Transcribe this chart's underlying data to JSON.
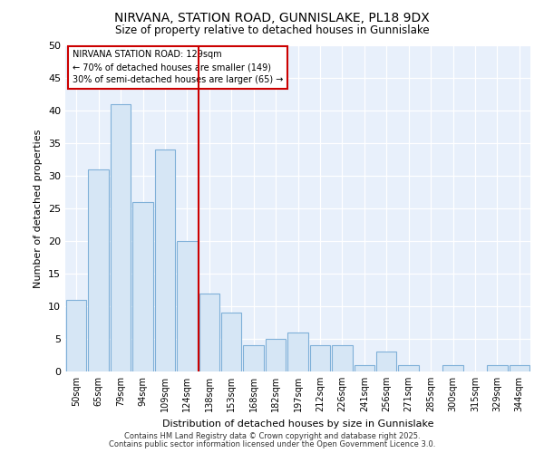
{
  "title1": "NIRVANA, STATION ROAD, GUNNISLAKE, PL18 9DX",
  "title2": "Size of property relative to detached houses in Gunnislake",
  "xlabel": "Distribution of detached houses by size in Gunnislake",
  "ylabel": "Number of detached properties",
  "categories": [
    "50sqm",
    "65sqm",
    "79sqm",
    "94sqm",
    "109sqm",
    "124sqm",
    "138sqm",
    "153sqm",
    "168sqm",
    "182sqm",
    "197sqm",
    "212sqm",
    "226sqm",
    "241sqm",
    "256sqm",
    "271sqm",
    "285sqm",
    "300sqm",
    "315sqm",
    "329sqm",
    "344sqm"
  ],
  "values": [
    11,
    31,
    41,
    26,
    34,
    20,
    12,
    9,
    4,
    5,
    6,
    4,
    4,
    1,
    3,
    1,
    0,
    1,
    0,
    1,
    1
  ],
  "bar_color": "#d6e6f5",
  "bar_edgecolor": "#7fb0d8",
  "vline_x": 5.5,
  "vline_color": "#cc0000",
  "annotation_text": "NIRVANA STATION ROAD: 129sqm\n← 70% of detached houses are smaller (149)\n30% of semi-detached houses are larger (65) →",
  "annotation_box_edgecolor": "#cc0000",
  "ylim": [
    0,
    50
  ],
  "yticks": [
    0,
    5,
    10,
    15,
    20,
    25,
    30,
    35,
    40,
    45,
    50
  ],
  "fig_background": "#ffffff",
  "plot_background": "#e8f0fb",
  "grid_color": "#ffffff",
  "footer_line1": "Contains HM Land Registry data © Crown copyright and database right 2025.",
  "footer_line2": "Contains public sector information licensed under the Open Government Licence 3.0."
}
